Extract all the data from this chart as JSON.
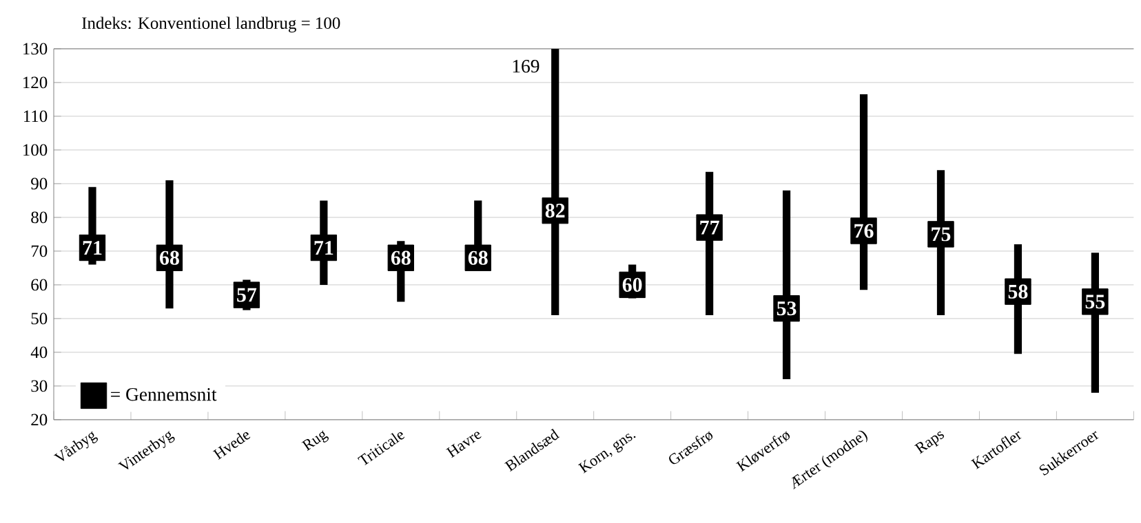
{
  "chart_data": {
    "type": "bar",
    "title": "Indeks: Konventionel landbrug = 100",
    "categories": [
      "Vårbyg",
      "Vinterbyg",
      "Hvede",
      "Rug",
      "Triticale",
      "Havre",
      "Blandsæd",
      "Korn, gns.",
      "Græsfrø",
      "Kløverfrø",
      "Ærter (modne)",
      "Raps",
      "Kartofler",
      "Sukkerroer"
    ],
    "series": [
      {
        "color": "#000000",
        "base": [
          66,
          53,
          52.5,
          60,
          55,
          69,
          51,
          56,
          51,
          32,
          58.5,
          51,
          39.5,
          28
        ],
        "values": [
          23,
          38,
          9,
          25,
          18,
          16,
          79,
          10,
          42.5,
          56,
          58,
          43,
          32.5,
          41.5
        ]
      },
      {
        "name": "= Gennemsnit",
        "type": "scatter",
        "color": "#000000",
        "marker": "square",
        "values": [
          71,
          68,
          57,
          71,
          68,
          68,
          82,
          60,
          77,
          53,
          76,
          75,
          58,
          55
        ],
        "value_labels": [
          "71",
          "68",
          "57",
          "71",
          "68",
          "68",
          "82",
          "60",
          "77",
          "53",
          "76",
          "75",
          "58",
          "55"
        ]
      }
    ],
    "annotations": [
      {
        "text": "169",
        "x": "Blandsæd",
        "y": 130
      }
    ],
    "ylim": [
      20,
      130
    ],
    "yticks": [
      20,
      30,
      40,
      50,
      60,
      70,
      80,
      90,
      100,
      110,
      120,
      130
    ],
    "grid": "y",
    "legend": "bottom left"
  }
}
